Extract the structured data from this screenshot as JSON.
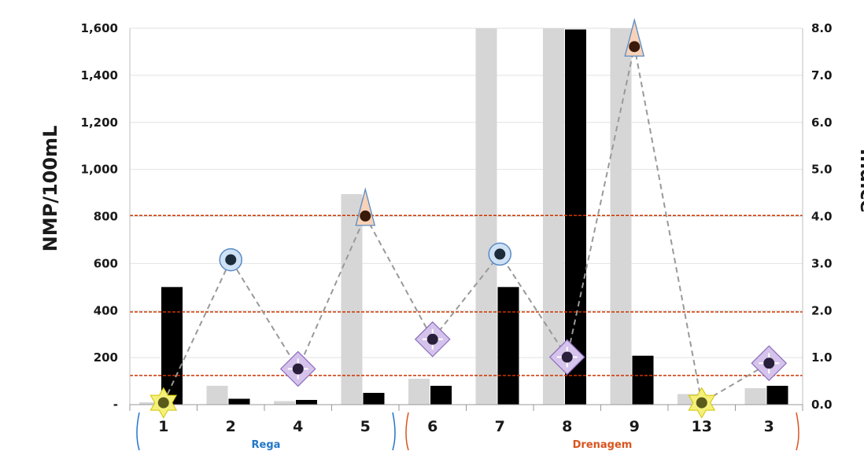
{
  "chart_data": {
    "type": "bar",
    "categories": [
      "1",
      "2",
      "4",
      "5",
      "6",
      "7",
      "8",
      "9",
      "13",
      "3"
    ],
    "series": [
      {
        "kind": "bar",
        "axis": "left",
        "color": "#d6d6d6",
        "values": [
          10,
          80,
          15,
          895,
          110,
          1600,
          1600,
          1600,
          45,
          70
        ]
      },
      {
        "kind": "bar",
        "axis": "left",
        "color": "#000000",
        "values": [
          500,
          25,
          20,
          50,
          80,
          500,
          1595,
          208,
          0,
          80
        ]
      },
      {
        "kind": "line",
        "axis": "right",
        "color": "#999999",
        "style": "dashed",
        "values": [
          0.04,
          3.08,
          0.76,
          4.01,
          1.39,
          3.2,
          1.01,
          7.61,
          0.04,
          0.88
        ],
        "markers": [
          "star",
          "circle",
          "diamond",
          "triangle",
          "diamond",
          "circle",
          "diamond",
          "triangle",
          "star",
          "diamond"
        ]
      }
    ],
    "ylabel": "NMP/100mL",
    "y2label": "Índice",
    "ylim": [
      0,
      1600
    ],
    "y2lim": [
      0,
      8
    ],
    "yticks": [
      "-",
      "200",
      "400",
      "600",
      "800",
      "1,000",
      "1,200",
      "1,400",
      "1,600"
    ],
    "y2ticks": [
      "0.0",
      "1.0",
      "2.0",
      "3.0",
      "4.0",
      "5.0",
      "6.0",
      "7.0",
      "8.0"
    ],
    "reference_lines_right_axis": [
      0.62,
      1.97,
      4.02
    ],
    "reference_color": "#cc3300",
    "groups": [
      {
        "label": "Rega",
        "color": "#1f77c8",
        "from": 0,
        "to": 3
      },
      {
        "label": "Drenagem",
        "color": "#d9541e",
        "from": 4,
        "to": 9
      }
    ],
    "grid": true
  }
}
